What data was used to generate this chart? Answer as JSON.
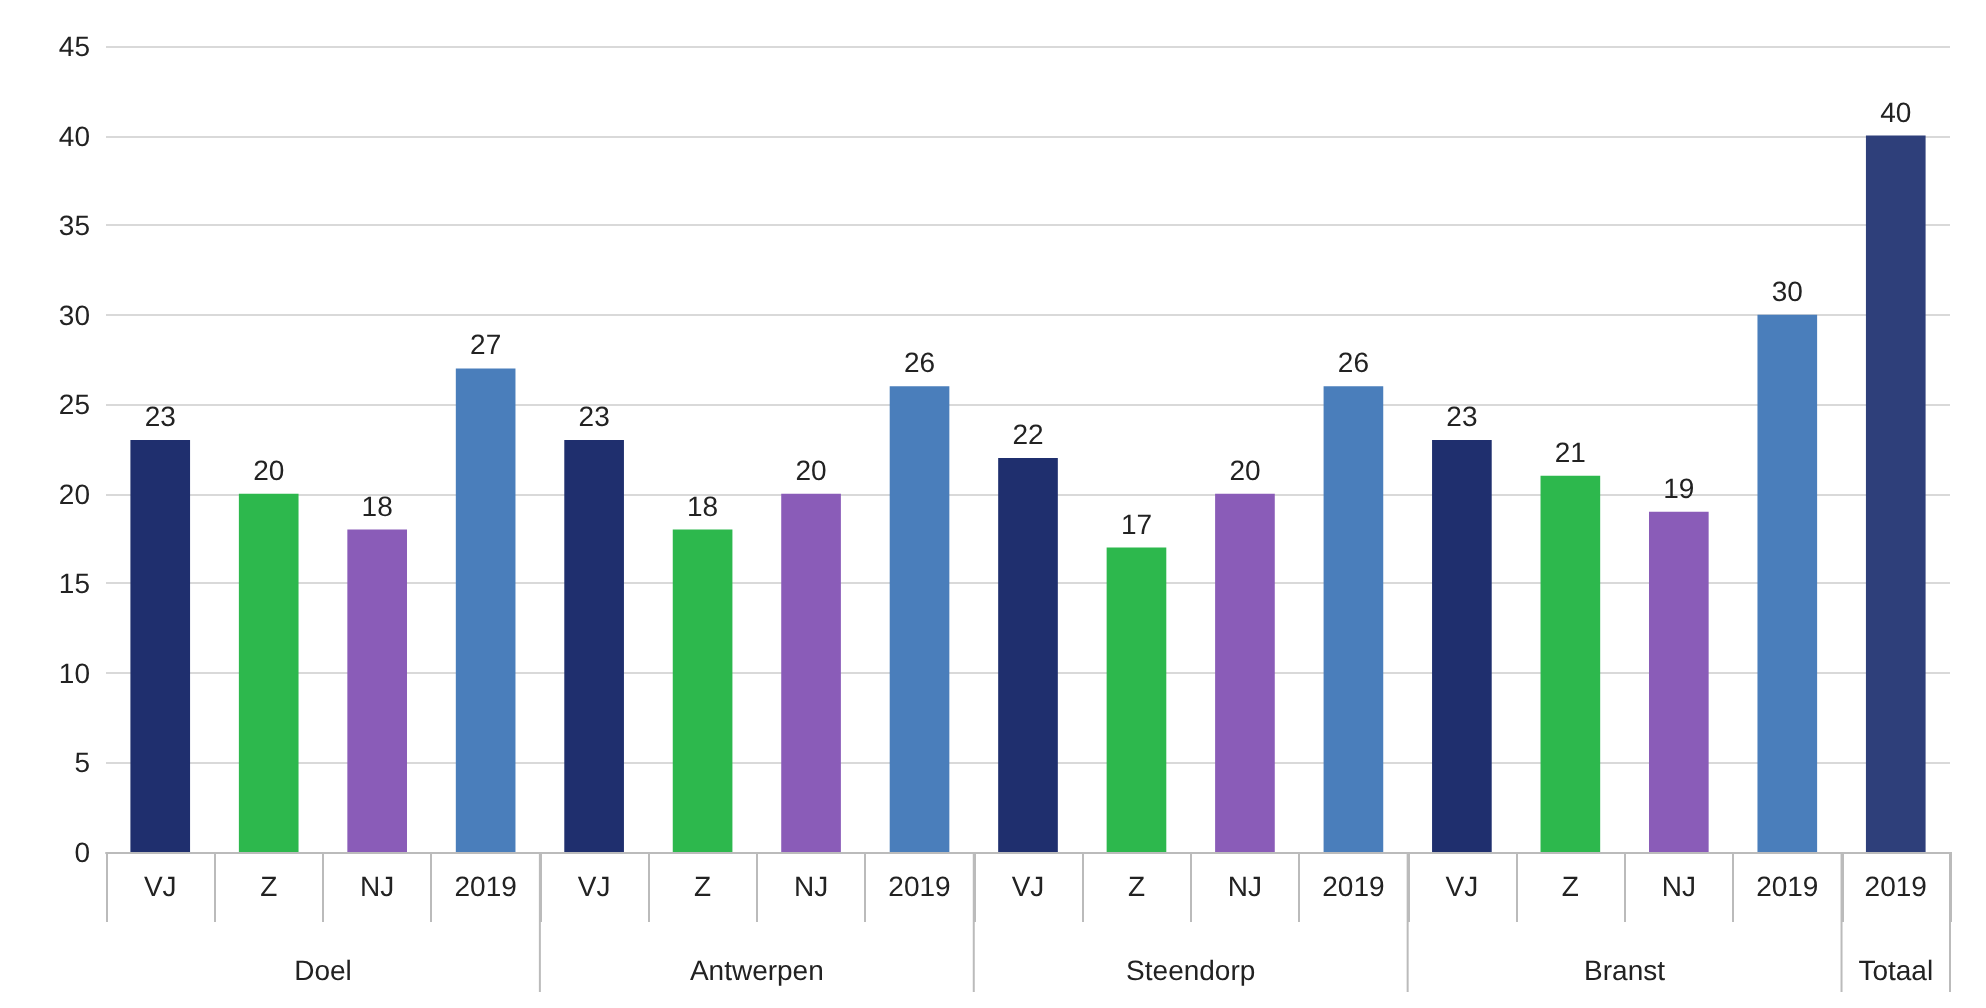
{
  "chart_data": {
    "type": "bar",
    "categories": [
      "VJ",
      "Z",
      "NJ",
      "2019",
      "VJ",
      "Z",
      "NJ",
      "2019",
      "VJ",
      "Z",
      "NJ",
      "2019",
      "VJ",
      "Z",
      "NJ",
      "2019",
      "2019"
    ],
    "values": [
      23,
      20,
      18,
      27,
      23,
      18,
      20,
      26,
      22,
      17,
      20,
      26,
      23,
      21,
      19,
      30,
      40
    ],
    "colors": [
      "#1f2f6e",
      "#2db84d",
      "#8a5cb8",
      "#4a7ebb",
      "#1f2f6e",
      "#2db84d",
      "#8a5cb8",
      "#4a7ebb",
      "#1f2f6e",
      "#2db84d",
      "#8a5cb8",
      "#4a7ebb",
      "#1f2f6e",
      "#2db84d",
      "#8a5cb8",
      "#4a7ebb",
      "#2e3f7a"
    ],
    "ylim": [
      0,
      45
    ],
    "yticks": [
      0,
      5,
      10,
      15,
      20,
      25,
      30,
      35,
      40,
      45
    ],
    "grid": "y",
    "data_labels": true,
    "annotations": [
      "Doel",
      "Antwerpen",
      "Steendorp",
      "Branst",
      "Totaal"
    ]
  }
}
